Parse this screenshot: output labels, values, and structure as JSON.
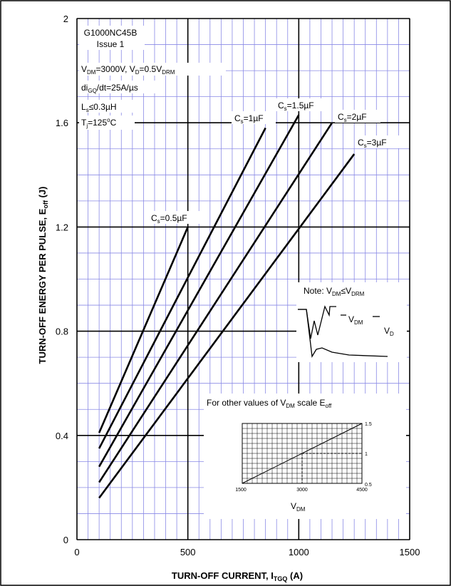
{
  "chart_data": {
    "type": "line",
    "xlabel": "TURN-OFF  CURRENT, I",
    "xlabel_sub": "TGQ",
    "xlabel_unit": " (A)",
    "ylabel": "TURN-OFF  ENERGY  PER PULSE, E",
    "ylabel_sub": "off",
    "ylabel_unit": " (J)",
    "xlim": [
      0,
      1500
    ],
    "ylim": [
      0,
      2
    ],
    "x_ticks": [
      0,
      500,
      1000,
      1500
    ],
    "x_tick_labels": [
      "0",
      "500",
      "1000",
      "1500"
    ],
    "y_ticks": [
      0,
      0.4,
      0.8,
      1.2,
      1.6,
      2
    ],
    "y_tick_labels": [
      "0",
      "0.4",
      "0.8",
      "1.2",
      "1.6",
      "2"
    ],
    "grid": true,
    "series": [
      {
        "name": "Cs=0.5µF",
        "x": [
          100,
          500
        ],
        "y": [
          0.41,
          1.2
        ]
      },
      {
        "name": "Cs=1µF",
        "x": [
          100,
          850
        ],
        "y": [
          0.35,
          1.58
        ]
      },
      {
        "name": "Cs=1.5µF",
        "x": [
          100,
          1000
        ],
        "y": [
          0.28,
          1.63
        ]
      },
      {
        "name": "Cs=2µF",
        "x": [
          100,
          1150
        ],
        "y": [
          0.22,
          1.6
        ]
      },
      {
        "name": "Cs=3µF",
        "x": [
          100,
          1250
        ],
        "y": [
          0.16,
          1.48
        ]
      }
    ],
    "curve_labels": [
      {
        "main": "C",
        "sub": "s",
        "rest": "=0.5µF"
      },
      {
        "main": "C",
        "sub": "s",
        "rest": "=1µF"
      },
      {
        "main": "C",
        "sub": "s",
        "rest": "=1.5µF"
      },
      {
        "main": "C",
        "sub": "s",
        "rest": "=2µF"
      },
      {
        "main": "C",
        "sub": "s",
        "rest": "=3µF"
      }
    ],
    "annotations": {
      "device": "G1000NC45B",
      "issue": "Issue 1",
      "cond1_a": "V",
      "cond1_a_sub": "DM",
      "cond1_b": "=3000V,  V",
      "cond1_b_sub": "D",
      "cond1_c": "=0.5V",
      "cond1_c_sub": "DRM",
      "cond2_a": "di",
      "cond2_a_sub": "GQ",
      "cond2_b": "/dt=25A/µs",
      "cond3": "L",
      "cond3_sub": "s",
      "cond3_b": "≤0.3µH",
      "cond4_a": "T",
      "cond4_a_sub": "j",
      "cond4_b": "=125",
      "cond4_sup": "o",
      "cond4_c": "C",
      "note_a": "Note:  V",
      "note_a_sub": "DM",
      "note_b": "≤V",
      "note_b_sub": "DRM",
      "wave_vdm": "V",
      "wave_vdm_sub": "DM",
      "wave_vd": "V",
      "wave_vd_sub": "D",
      "scale_a": "For other values of V",
      "scale_a_sub": "DM",
      "scale_b": " scale E",
      "scale_b_sub": "off"
    },
    "inset_chart": {
      "type": "line",
      "xlim": [
        1500,
        4500
      ],
      "ylim": [
        0.5,
        1.5
      ],
      "x_tick_labels": [
        "1500",
        "3000",
        "4500"
      ],
      "y_tick_labels": [
        "0.5",
        "1",
        "1.5"
      ],
      "xlabel": "V",
      "xlabel_sub": "DM",
      "series": [
        {
          "x": [
            1500,
            4500
          ],
          "y": [
            0.5,
            1.5
          ]
        }
      ],
      "reference": {
        "x": 3000,
        "y": 1
      }
    }
  }
}
